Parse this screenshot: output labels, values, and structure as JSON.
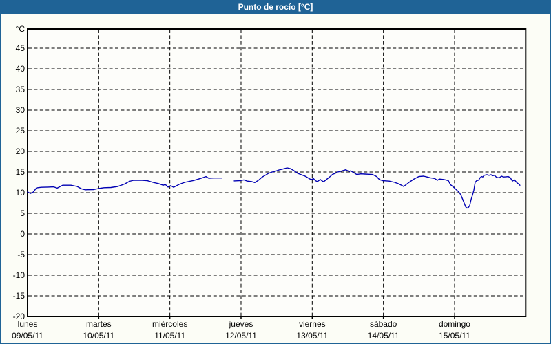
{
  "window": {
    "title": "Punto de rocío [°C]"
  },
  "colors": {
    "titlebar_bg": "#1f6396",
    "title_text": "#ffffff",
    "frame_border": "#1f6396",
    "page_bg": "#fcfdf6",
    "plot_bg": "#fdfdfa",
    "grid": "#000000",
    "axis": "#000000",
    "line": "#0000b3",
    "label_text": "#000000"
  },
  "chart_data": {
    "type": "line",
    "title": "Punto de rocío [°C]",
    "xlabel": "",
    "ylabel": "°C",
    "ylim": [
      -20,
      49.7
    ],
    "x_range_days": [
      0,
      7
    ],
    "grid": "dashed",
    "legend": "none",
    "yticks": [
      45,
      40,
      35,
      30,
      25,
      20,
      15,
      10,
      5,
      0,
      -5,
      -10,
      -15,
      -20
    ],
    "days": [
      {
        "name": "lunes",
        "date": "09/05/11"
      },
      {
        "name": "martes",
        "date": "10/05/11"
      },
      {
        "name": "miércoles",
        "date": "11/05/11"
      },
      {
        "name": "jueves",
        "date": "12/05/11"
      },
      {
        "name": "viernes",
        "date": "13/05/11"
      },
      {
        "name": "sábado",
        "date": "14/05/11"
      },
      {
        "name": "domingo",
        "date": "15/05/11"
      }
    ],
    "series": [
      {
        "name": "Punto de rocío",
        "color": "#0000b3",
        "units": "°C",
        "segments": [
          [
            [
              0.0,
              10.2
            ],
            [
              0.039,
              9.8
            ],
            [
              0.077,
              10.1
            ],
            [
              0.126,
              11.15
            ],
            [
              0.194,
              11.3
            ],
            [
              0.29,
              11.35
            ],
            [
              0.368,
              11.4
            ],
            [
              0.416,
              11.1
            ],
            [
              0.494,
              11.8
            ],
            [
              0.61,
              11.8
            ],
            [
              0.697,
              11.5
            ],
            [
              0.755,
              10.95
            ],
            [
              0.813,
              10.7
            ],
            [
              0.929,
              10.75
            ],
            [
              0.997,
              11.0
            ],
            [
              1.074,
              11.2
            ],
            [
              1.171,
              11.25
            ],
            [
              1.268,
              11.5
            ],
            [
              1.365,
              12.1
            ],
            [
              1.432,
              12.75
            ],
            [
              1.49,
              13.0
            ],
            [
              1.607,
              13.0
            ],
            [
              1.684,
              12.9
            ],
            [
              1.761,
              12.5
            ],
            [
              1.839,
              12.2
            ],
            [
              1.907,
              11.8
            ],
            [
              1.936,
              12.0
            ],
            [
              1.974,
              11.35
            ],
            [
              2.013,
              11.7
            ],
            [
              2.052,
              11.3
            ],
            [
              2.129,
              12.0
            ],
            [
              2.207,
              12.5
            ],
            [
              2.333,
              12.95
            ],
            [
              2.458,
              13.6
            ],
            [
              2.507,
              13.9
            ],
            [
              2.545,
              13.5
            ],
            [
              2.613,
              13.55
            ],
            [
              2.729,
              13.55
            ]
          ],
          [
            [
              2.903,
              12.85
            ],
            [
              2.981,
              12.9
            ],
            [
              3.039,
              13.1
            ],
            [
              3.087,
              12.8
            ],
            [
              3.145,
              12.7
            ],
            [
              3.194,
              12.45
            ],
            [
              3.252,
              13.1
            ],
            [
              3.29,
              13.7
            ],
            [
              3.339,
              14.2
            ],
            [
              3.387,
              14.7
            ],
            [
              3.436,
              15.0
            ],
            [
              3.484,
              15.2
            ],
            [
              3.532,
              15.5
            ],
            [
              3.581,
              15.7
            ],
            [
              3.648,
              16.0
            ],
            [
              3.697,
              15.8
            ],
            [
              3.726,
              15.5
            ],
            [
              3.755,
              15.2
            ],
            [
              3.794,
              14.7
            ],
            [
              3.823,
              14.5
            ],
            [
              3.852,
              14.3
            ],
            [
              3.9,
              14.0
            ],
            [
              3.939,
              13.6
            ],
            [
              3.968,
              13.3
            ],
            [
              3.997,
              13.2
            ],
            [
              4.016,
              13.45
            ],
            [
              4.045,
              12.9
            ],
            [
              4.074,
              12.7
            ],
            [
              4.113,
              13.2
            ],
            [
              4.142,
              12.8
            ],
            [
              4.161,
              12.65
            ],
            [
              4.19,
              13.05
            ],
            [
              4.229,
              13.6
            ],
            [
              4.258,
              14.0
            ],
            [
              4.287,
              14.45
            ],
            [
              4.326,
              14.7
            ],
            [
              4.355,
              15.0
            ],
            [
              4.384,
              15.1
            ],
            [
              4.423,
              15.3
            ],
            [
              4.452,
              15.45
            ],
            [
              4.471,
              15.55
            ],
            [
              4.5,
              15.3
            ],
            [
              4.519,
              15.1
            ],
            [
              4.539,
              15.3
            ],
            [
              4.568,
              15.0
            ],
            [
              4.597,
              14.7
            ],
            [
              4.626,
              14.4
            ],
            [
              4.684,
              14.55
            ],
            [
              4.742,
              14.5
            ],
            [
              4.8,
              14.45
            ],
            [
              4.848,
              14.4
            ],
            [
              4.906,
              13.9
            ],
            [
              4.945,
              13.15
            ],
            [
              4.994,
              12.9
            ],
            [
              5.081,
              12.8
            ],
            [
              5.158,
              12.5
            ],
            [
              5.206,
              12.2
            ],
            [
              5.255,
              11.8
            ],
            [
              5.284,
              11.5
            ],
            [
              5.323,
              12.0
            ],
            [
              5.361,
              12.5
            ],
            [
              5.429,
              13.3
            ],
            [
              5.497,
              13.9
            ],
            [
              5.565,
              14.0
            ],
            [
              5.613,
              13.8
            ],
            [
              5.661,
              13.6
            ],
            [
              5.719,
              13.45
            ],
            [
              5.758,
              13.0
            ],
            [
              5.787,
              13.3
            ],
            [
              5.845,
              13.2
            ],
            [
              5.884,
              13.05
            ],
            [
              5.913,
              12.9
            ],
            [
              5.942,
              11.95
            ],
            [
              5.971,
              11.55
            ],
            [
              6.0,
              11.1
            ],
            [
              6.029,
              10.65
            ],
            [
              6.058,
              10.2
            ],
            [
              6.087,
              9.5
            ],
            [
              6.116,
              8.3
            ],
            [
              6.135,
              7.5
            ],
            [
              6.155,
              6.6
            ],
            [
              6.174,
              6.25
            ],
            [
              6.194,
              6.4
            ],
            [
              6.213,
              6.9
            ],
            [
              6.232,
              8.3
            ],
            [
              6.252,
              9.4
            ],
            [
              6.271,
              10.6
            ],
            [
              6.29,
              12.5
            ],
            [
              6.31,
              12.9
            ],
            [
              6.339,
              13.05
            ],
            [
              6.358,
              13.6
            ],
            [
              6.377,
              13.9
            ],
            [
              6.397,
              13.8
            ],
            [
              6.416,
              14.2
            ],
            [
              6.455,
              14.35
            ],
            [
              6.484,
              14.2
            ],
            [
              6.513,
              14.35
            ],
            [
              6.532,
              14.1
            ],
            [
              6.561,
              14.2
            ],
            [
              6.59,
              13.7
            ],
            [
              6.629,
              13.6
            ],
            [
              6.658,
              14.0
            ],
            [
              6.687,
              13.8
            ],
            [
              6.726,
              13.85
            ],
            [
              6.755,
              13.9
            ],
            [
              6.784,
              13.6
            ],
            [
              6.813,
              12.8
            ],
            [
              6.842,
              13.1
            ],
            [
              6.871,
              12.5
            ],
            [
              6.9,
              12.1
            ],
            [
              6.919,
              11.8
            ]
          ]
        ]
      }
    ]
  }
}
